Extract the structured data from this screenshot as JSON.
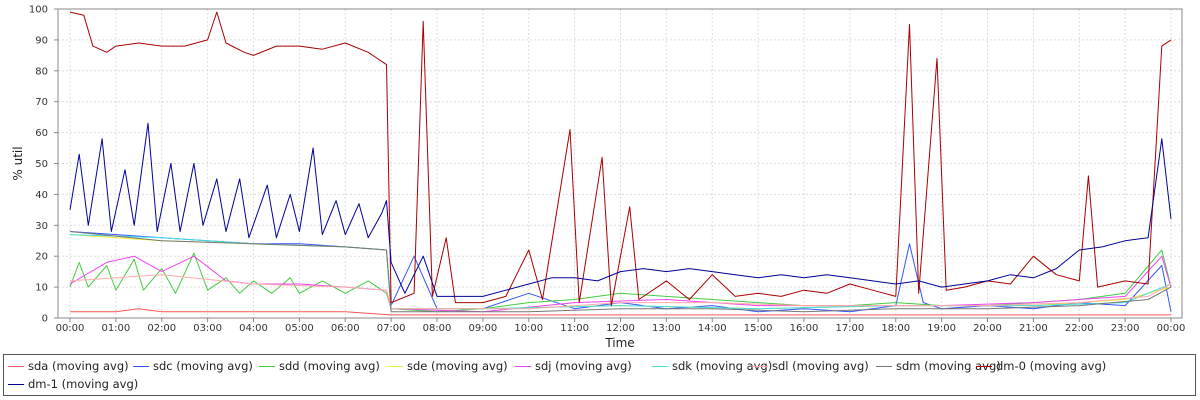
{
  "chart_data": {
    "type": "line",
    "xlabel": "Time",
    "ylabel": "% util",
    "ylim": [
      0,
      100
    ],
    "yticks": [
      0,
      10,
      20,
      30,
      40,
      50,
      60,
      70,
      80,
      90,
      100
    ],
    "xlim": [
      0,
      24.2
    ],
    "xticks": [
      "00:00",
      "01:00",
      "02:00",
      "03:00",
      "04:00",
      "05:00",
      "06:00",
      "07:00",
      "08:00",
      "09:00",
      "10:00",
      "11:00",
      "12:00",
      "13:00",
      "14:00",
      "15:00",
      "16:00",
      "17:00",
      "18:00",
      "19:00",
      "20:00",
      "21:00",
      "22:00",
      "23:00",
      "00:00"
    ],
    "grid": true,
    "legend_position": "bottom",
    "series": [
      {
        "name": "sda (moving avg)",
        "color": "#ff5555",
        "points": [
          [
            0,
            2
          ],
          [
            1,
            2
          ],
          [
            1.5,
            3
          ],
          [
            2,
            2
          ],
          [
            3,
            2
          ],
          [
            4,
            2
          ],
          [
            5,
            2
          ],
          [
            6,
            2
          ],
          [
            7,
            1
          ],
          [
            8,
            1
          ],
          [
            9,
            1
          ],
          [
            10,
            1
          ],
          [
            12,
            1
          ],
          [
            14,
            1
          ],
          [
            16,
            1
          ],
          [
            18,
            1
          ],
          [
            20,
            1
          ],
          [
            22,
            1
          ],
          [
            23.5,
            1
          ],
          [
            24,
            1
          ]
        ]
      },
      {
        "name": "sdc (moving avg)",
        "color": "#3355ff",
        "points": [
          [
            0,
            28
          ],
          [
            1,
            27
          ],
          [
            2,
            26
          ],
          [
            3,
            25
          ],
          [
            4,
            24
          ],
          [
            5,
            24
          ],
          [
            6,
            23
          ],
          [
            6.9,
            22
          ],
          [
            7,
            4
          ],
          [
            7.5,
            20
          ],
          [
            8,
            3
          ],
          [
            9,
            3
          ],
          [
            10,
            8
          ],
          [
            11,
            3
          ],
          [
            12,
            5
          ],
          [
            13,
            3
          ],
          [
            14,
            4
          ],
          [
            15,
            2
          ],
          [
            16,
            3
          ],
          [
            17,
            2
          ],
          [
            18,
            4
          ],
          [
            18.3,
            24
          ],
          [
            18.6,
            5
          ],
          [
            19,
            3
          ],
          [
            20,
            4
          ],
          [
            21,
            3
          ],
          [
            22,
            5
          ],
          [
            23,
            4
          ],
          [
            23.8,
            17
          ],
          [
            24,
            2
          ]
        ]
      },
      {
        "name": "sdd (moving avg)",
        "color": "#44cc44",
        "points": [
          [
            0,
            10
          ],
          [
            0.2,
            18
          ],
          [
            0.4,
            10
          ],
          [
            0.8,
            17
          ],
          [
            1,
            9
          ],
          [
            1.4,
            19
          ],
          [
            1.6,
            9
          ],
          [
            2,
            16
          ],
          [
            2.3,
            8
          ],
          [
            2.7,
            21
          ],
          [
            3,
            9
          ],
          [
            3.4,
            13
          ],
          [
            3.7,
            8
          ],
          [
            4,
            12
          ],
          [
            4.4,
            8
          ],
          [
            4.8,
            13
          ],
          [
            5,
            8
          ],
          [
            5.5,
            12
          ],
          [
            6,
            8
          ],
          [
            6.5,
            12
          ],
          [
            6.9,
            8
          ],
          [
            7,
            3
          ],
          [
            8,
            2
          ],
          [
            9,
            3
          ],
          [
            10,
            5
          ],
          [
            11,
            6
          ],
          [
            12,
            8
          ],
          [
            13,
            7
          ],
          [
            14,
            6
          ],
          [
            15,
            5
          ],
          [
            16,
            4
          ],
          [
            17,
            4
          ],
          [
            18,
            5
          ],
          [
            19,
            4
          ],
          [
            20,
            4
          ],
          [
            21,
            5
          ],
          [
            22,
            6
          ],
          [
            23,
            8
          ],
          [
            23.8,
            22
          ],
          [
            24,
            10
          ]
        ]
      },
      {
        "name": "sde (moving avg)",
        "color": "#eeee33",
        "points": [
          [
            0,
            27
          ],
          [
            2,
            25
          ],
          [
            4,
            24
          ],
          [
            6,
            23
          ],
          [
            6.9,
            22
          ],
          [
            7,
            3
          ],
          [
            9,
            3
          ],
          [
            12,
            4
          ],
          [
            15,
            3
          ],
          [
            18,
            4
          ],
          [
            21,
            4
          ],
          [
            23,
            6
          ],
          [
            24,
            10
          ]
        ]
      },
      {
        "name": "sdj (moving avg)",
        "color": "#ee44ee",
        "points": [
          [
            0,
            11
          ],
          [
            0.8,
            18
          ],
          [
            1.4,
            20
          ],
          [
            2,
            15
          ],
          [
            2.7,
            20
          ],
          [
            3.4,
            12
          ],
          [
            4,
            11
          ],
          [
            5,
            11
          ],
          [
            6,
            10
          ],
          [
            6.9,
            9
          ],
          [
            7,
            3
          ],
          [
            9,
            2
          ],
          [
            11,
            5
          ],
          [
            13,
            6
          ],
          [
            15,
            4
          ],
          [
            17,
            4
          ],
          [
            19,
            4
          ],
          [
            21,
            5
          ],
          [
            23,
            7
          ],
          [
            23.8,
            20
          ],
          [
            24,
            10
          ]
        ]
      },
      {
        "name": "sdk (moving avg)",
        "color": "#44dddd",
        "points": [
          [
            0,
            27
          ],
          [
            2,
            26
          ],
          [
            4,
            24
          ],
          [
            6,
            23
          ],
          [
            6.9,
            22
          ],
          [
            7,
            3
          ],
          [
            9,
            3
          ],
          [
            12,
            4
          ],
          [
            15,
            3
          ],
          [
            18,
            4
          ],
          [
            21,
            4
          ],
          [
            23,
            5
          ],
          [
            24,
            11
          ]
        ]
      },
      {
        "name": "sdl (moving avg)",
        "color": "#ffaaaa",
        "points": [
          [
            0,
            12
          ],
          [
            2,
            14
          ],
          [
            4,
            11
          ],
          [
            6,
            10
          ],
          [
            6.9,
            9
          ],
          [
            7,
            3
          ],
          [
            10,
            3
          ],
          [
            12,
            5
          ],
          [
            14,
            5
          ],
          [
            16,
            4
          ],
          [
            18,
            4
          ],
          [
            20,
            4
          ],
          [
            22,
            5
          ],
          [
            23.5,
            7
          ],
          [
            24,
            11
          ]
        ]
      },
      {
        "name": "sdm (moving avg)",
        "color": "#777777",
        "points": [
          [
            0,
            28
          ],
          [
            2,
            25
          ],
          [
            4,
            24
          ],
          [
            6,
            23
          ],
          [
            6.9,
            22
          ],
          [
            7,
            2
          ],
          [
            10,
            2
          ],
          [
            12,
            3
          ],
          [
            14,
            3
          ],
          [
            16,
            2
          ],
          [
            18,
            3
          ],
          [
            20,
            3
          ],
          [
            22,
            4
          ],
          [
            23.5,
            6
          ],
          [
            24,
            10
          ]
        ]
      },
      {
        "name": "dm-0 (moving avg)",
        "color": "#aa0000",
        "points": [
          [
            0,
            99
          ],
          [
            0.3,
            98
          ],
          [
            0.5,
            88
          ],
          [
            0.8,
            86
          ],
          [
            1,
            88
          ],
          [
            1.5,
            89
          ],
          [
            2,
            88
          ],
          [
            2.5,
            88
          ],
          [
            3,
            90
          ],
          [
            3.2,
            99
          ],
          [
            3.4,
            89
          ],
          [
            3.8,
            86
          ],
          [
            4,
            85
          ],
          [
            4.5,
            88
          ],
          [
            5,
            88
          ],
          [
            5.5,
            87
          ],
          [
            6,
            89
          ],
          [
            6.5,
            86
          ],
          [
            6.9,
            82
          ],
          [
            7,
            5
          ],
          [
            7.5,
            8
          ],
          [
            7.7,
            96
          ],
          [
            7.9,
            7
          ],
          [
            8.2,
            26
          ],
          [
            8.4,
            5
          ],
          [
            9,
            5
          ],
          [
            9.5,
            7
          ],
          [
            10,
            22
          ],
          [
            10.3,
            6
          ],
          [
            10.9,
            61
          ],
          [
            11.1,
            5
          ],
          [
            11.6,
            52
          ],
          [
            11.8,
            4
          ],
          [
            12.2,
            36
          ],
          [
            12.4,
            6
          ],
          [
            13,
            12
          ],
          [
            13.5,
            6
          ],
          [
            14,
            14
          ],
          [
            14.5,
            7
          ],
          [
            15,
            8
          ],
          [
            15.5,
            7
          ],
          [
            16,
            9
          ],
          [
            16.5,
            8
          ],
          [
            17,
            11
          ],
          [
            17.5,
            9
          ],
          [
            18,
            7
          ],
          [
            18.3,
            95
          ],
          [
            18.5,
            8
          ],
          [
            18.9,
            84
          ],
          [
            19.1,
            9
          ],
          [
            19.5,
            10
          ],
          [
            20,
            12
          ],
          [
            20.5,
            11
          ],
          [
            21,
            20
          ],
          [
            21.5,
            14
          ],
          [
            22,
            12
          ],
          [
            22.2,
            46
          ],
          [
            22.4,
            10
          ],
          [
            23,
            12
          ],
          [
            23.5,
            11
          ],
          [
            23.8,
            88
          ],
          [
            24,
            90
          ]
        ]
      },
      {
        "name": "dm-1 (moving avg)",
        "color": "#000099",
        "points": [
          [
            0,
            35
          ],
          [
            0.2,
            53
          ],
          [
            0.4,
            30
          ],
          [
            0.7,
            58
          ],
          [
            0.9,
            28
          ],
          [
            1.2,
            48
          ],
          [
            1.4,
            30
          ],
          [
            1.7,
            63
          ],
          [
            1.9,
            28
          ],
          [
            2.2,
            50
          ],
          [
            2.4,
            28
          ],
          [
            2.7,
            50
          ],
          [
            2.9,
            30
          ],
          [
            3.2,
            45
          ],
          [
            3.4,
            28
          ],
          [
            3.7,
            45
          ],
          [
            3.9,
            26
          ],
          [
            4.3,
            43
          ],
          [
            4.5,
            26
          ],
          [
            4.8,
            40
          ],
          [
            5,
            28
          ],
          [
            5.3,
            55
          ],
          [
            5.5,
            27
          ],
          [
            5.8,
            38
          ],
          [
            6,
            27
          ],
          [
            6.3,
            37
          ],
          [
            6.5,
            26
          ],
          [
            6.8,
            34
          ],
          [
            6.9,
            38
          ],
          [
            7,
            18
          ],
          [
            7.3,
            8
          ],
          [
            7.7,
            20
          ],
          [
            8,
            7
          ],
          [
            9,
            7
          ],
          [
            9.5,
            9
          ],
          [
            10,
            11
          ],
          [
            10.5,
            13
          ],
          [
            11,
            13
          ],
          [
            11.5,
            12
          ],
          [
            12,
            15
          ],
          [
            12.5,
            16
          ],
          [
            13,
            15
          ],
          [
            13.5,
            16
          ],
          [
            14,
            15
          ],
          [
            14.5,
            14
          ],
          [
            15,
            13
          ],
          [
            15.5,
            14
          ],
          [
            16,
            13
          ],
          [
            16.5,
            14
          ],
          [
            17,
            13
          ],
          [
            17.5,
            12
          ],
          [
            18,
            11
          ],
          [
            18.5,
            12
          ],
          [
            19,
            10
          ],
          [
            19.5,
            11
          ],
          [
            20,
            12
          ],
          [
            20.5,
            14
          ],
          [
            21,
            13
          ],
          [
            21.5,
            16
          ],
          [
            22,
            22
          ],
          [
            22.5,
            23
          ],
          [
            23,
            25
          ],
          [
            23.5,
            26
          ],
          [
            23.8,
            58
          ],
          [
            24,
            32
          ]
        ]
      }
    ]
  }
}
